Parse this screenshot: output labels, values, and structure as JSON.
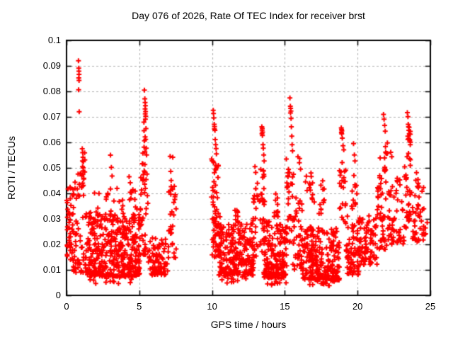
{
  "chart_data": {
    "type": "scatter",
    "title": "Day 076 of 2026, Rate Of TEC Index for receiver brst",
    "xlabel": "GPS time / hours",
    "ylabel": "ROTI / TECUs",
    "xlim": [
      0,
      25
    ],
    "ylim": [
      0,
      0.1
    ],
    "xtick_values": [
      0,
      5,
      10,
      15,
      20,
      25
    ],
    "xtick_labels": [
      "0",
      "5",
      "10",
      "15",
      "20",
      "25"
    ],
    "ytick_values": [
      0,
      0.01,
      0.02,
      0.03,
      0.04,
      0.05,
      0.06,
      0.07,
      0.08,
      0.09,
      0.1
    ],
    "ytick_labels": [
      "0",
      "0.01",
      "0.02",
      "0.03",
      "0.04",
      "0.05",
      "0.06",
      "0.07",
      "0.08",
      "0.09",
      "0.1"
    ],
    "grid": true,
    "legend": "none",
    "marker": "plus",
    "marker_color": "#ff0000",
    "grid_color": "#b0b0b0",
    "axis_color": "#000000",
    "background_color": "#ffffff",
    "data_gap_hours": [
      7.6,
      9.9
    ],
    "seed": 76,
    "spike_points": [
      [
        0.82,
        0.092
      ],
      [
        0.84,
        0.0891
      ],
      [
        0.85,
        0.0879
      ],
      [
        0.86,
        0.0867
      ],
      [
        0.84,
        0.0853
      ],
      [
        0.86,
        0.0843
      ],
      [
        0.83,
        0.0806
      ],
      [
        0.87,
        0.072
      ],
      [
        1.08,
        0.0575
      ],
      [
        1.11,
        0.056
      ],
      [
        1.13,
        0.0542
      ],
      [
        1.16,
        0.0524
      ],
      [
        1.1,
        0.0505
      ],
      [
        1.14,
        0.0488
      ],
      [
        3.02,
        0.055
      ],
      [
        3.08,
        0.0502
      ],
      [
        3.13,
        0.0468
      ],
      [
        4.3,
        0.0465
      ],
      [
        4.38,
        0.0442
      ],
      [
        5.35,
        0.0805
      ],
      [
        5.38,
        0.0771
      ],
      [
        5.4,
        0.0756
      ],
      [
        5.42,
        0.0744
      ],
      [
        5.4,
        0.0731
      ],
      [
        5.43,
        0.0721
      ],
      [
        5.41,
        0.0712
      ],
      [
        5.44,
        0.0703
      ],
      [
        5.42,
        0.0691
      ],
      [
        5.46,
        0.0654
      ],
      [
        5.44,
        0.0612
      ],
      [
        5.48,
        0.0577
      ],
      [
        5.5,
        0.0551
      ],
      [
        7.12,
        0.0545
      ],
      [
        7.3,
        0.0542
      ],
      [
        7.16,
        0.0486
      ],
      [
        7.19,
        0.0451
      ],
      [
        10.08,
        0.0726
      ],
      [
        10.1,
        0.0713
      ],
      [
        10.12,
        0.0696
      ],
      [
        10.15,
        0.0671
      ],
      [
        10.17,
        0.0662
      ],
      [
        10.16,
        0.0653
      ],
      [
        10.2,
        0.0647
      ],
      [
        10.22,
        0.0611
      ],
      [
        10.25,
        0.0591
      ],
      [
        10.28,
        0.0576
      ],
      [
        10.3,
        0.0555
      ],
      [
        12.95,
        0.0505
      ],
      [
        13.0,
        0.0482
      ],
      [
        13.42,
        0.0661
      ],
      [
        13.45,
        0.0655
      ],
      [
        13.44,
        0.0648
      ],
      [
        13.47,
        0.064
      ],
      [
        13.43,
        0.0634
      ],
      [
        13.46,
        0.0627
      ],
      [
        13.5,
        0.0591
      ],
      [
        13.52,
        0.0577
      ],
      [
        13.55,
        0.0551
      ],
      [
        13.58,
        0.0527
      ],
      [
        15.35,
        0.0774
      ],
      [
        15.38,
        0.0742
      ],
      [
        15.4,
        0.0733
      ],
      [
        15.42,
        0.0723
      ],
      [
        15.39,
        0.0715
      ],
      [
        15.43,
        0.0694
      ],
      [
        15.45,
        0.0661
      ],
      [
        15.48,
        0.0624
      ],
      [
        15.5,
        0.0591
      ],
      [
        15.53,
        0.0567
      ],
      [
        15.9,
        0.0544
      ],
      [
        16.0,
        0.052
      ],
      [
        16.02,
        0.0537
      ],
      [
        16.08,
        0.0495
      ],
      [
        18.88,
        0.0657
      ],
      [
        18.9,
        0.0651
      ],
      [
        18.92,
        0.0645
      ],
      [
        18.89,
        0.0639
      ],
      [
        18.91,
        0.0633
      ],
      [
        18.95,
        0.0617
      ],
      [
        19.0,
        0.0587
      ],
      [
        19.05,
        0.0571
      ],
      [
        19.72,
        0.0595
      ],
      [
        19.78,
        0.0551
      ],
      [
        19.82,
        0.0527
      ],
      [
        21.78,
        0.071
      ],
      [
        21.82,
        0.0691
      ],
      [
        21.86,
        0.0667
      ],
      [
        21.9,
        0.0644
      ],
      [
        21.55,
        0.0539
      ],
      [
        22.28,
        0.0561
      ],
      [
        22.35,
        0.0544
      ],
      [
        23.42,
        0.0717
      ],
      [
        23.46,
        0.0701
      ],
      [
        23.48,
        0.0671
      ],
      [
        23.5,
        0.0661
      ],
      [
        23.52,
        0.0647
      ],
      [
        23.55,
        0.0634
      ],
      [
        23.58,
        0.0607
      ],
      [
        23.62,
        0.0591
      ],
      [
        24.05,
        0.0481
      ],
      [
        24.15,
        0.0454
      ]
    ],
    "clusters_format": "[x_start_hour, x_end_hour, point_count, y_min_TECU, y_max_TECU, bias_toward_min]",
    "density_clusters": [
      [
        0.02,
        0.45,
        42,
        0.014,
        0.044,
        1.5
      ],
      [
        0.45,
        1.35,
        65,
        0.009,
        0.048,
        1.6
      ],
      [
        1.0,
        1.3,
        10,
        0.038,
        0.056,
        1.0
      ],
      [
        1.35,
        5.05,
        400,
        0.0075,
        0.032,
        1.6
      ],
      [
        1.5,
        5.0,
        36,
        0.03,
        0.042,
        1.2
      ],
      [
        1.2,
        5.0,
        22,
        0.0045,
        0.0085,
        1.0
      ],
      [
        5.05,
        5.6,
        40,
        0.015,
        0.05,
        1.3
      ],
      [
        5.2,
        5.5,
        10,
        0.048,
        0.068,
        1.0
      ],
      [
        5.6,
        6.95,
        85,
        0.008,
        0.023,
        1.5
      ],
      [
        6.95,
        7.55,
        30,
        0.014,
        0.044,
        1.3
      ],
      [
        9.95,
        10.45,
        30,
        0.026,
        0.054,
        1.2
      ],
      [
        10.0,
        10.6,
        40,
        0.015,
        0.034,
        1.2
      ],
      [
        10.45,
        12.85,
        220,
        0.008,
        0.028,
        1.6
      ],
      [
        11.55,
        11.8,
        10,
        0.026,
        0.034,
        1.0
      ],
      [
        10.5,
        12.8,
        16,
        0.0045,
        0.0085,
        1.0
      ],
      [
        12.8,
        13.15,
        24,
        0.015,
        0.044,
        1.2
      ],
      [
        13.25,
        13.7,
        30,
        0.016,
        0.05,
        1.2
      ],
      [
        13.55,
        15.15,
        170,
        0.007,
        0.029,
        1.6
      ],
      [
        14.25,
        14.55,
        12,
        0.03,
        0.041,
        1.1
      ],
      [
        13.8,
        15.1,
        14,
        0.004,
        0.008,
        1.0
      ],
      [
        15.1,
        15.6,
        30,
        0.02,
        0.054,
        1.2
      ],
      [
        15.55,
        16.2,
        45,
        0.01,
        0.04,
        1.4
      ],
      [
        16.2,
        18.75,
        250,
        0.006,
        0.027,
        1.6
      ],
      [
        16.4,
        17.1,
        14,
        0.034,
        0.049,
        1.2
      ],
      [
        17.3,
        17.8,
        12,
        0.032,
        0.045,
        1.2
      ],
      [
        16.5,
        18.7,
        16,
        0.0035,
        0.0075,
        1.0
      ],
      [
        18.75,
        19.2,
        22,
        0.026,
        0.054,
        1.2
      ],
      [
        19.2,
        20.1,
        75,
        0.008,
        0.032,
        1.5
      ],
      [
        19.6,
        19.95,
        12,
        0.034,
        0.05,
        1.1
      ],
      [
        20.1,
        21.35,
        80,
        0.012,
        0.032,
        1.4
      ],
      [
        21.35,
        22.1,
        45,
        0.018,
        0.048,
        1.3
      ],
      [
        21.8,
        22.05,
        12,
        0.048,
        0.062,
        1.0
      ],
      [
        22.1,
        23.2,
        55,
        0.02,
        0.046,
        1.3
      ],
      [
        23.2,
        23.7,
        32,
        0.026,
        0.056,
        1.2
      ],
      [
        23.45,
        23.65,
        8,
        0.058,
        0.066,
        1.0
      ],
      [
        23.7,
        24.55,
        40,
        0.021,
        0.046,
        1.3
      ],
      [
        24.4,
        24.8,
        8,
        0.022,
        0.034,
        1.0
      ]
    ]
  }
}
